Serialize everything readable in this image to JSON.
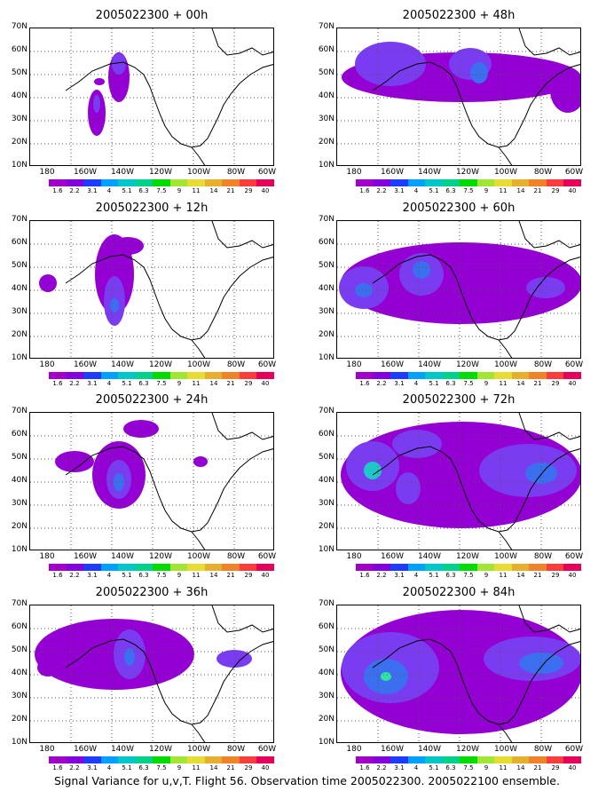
{
  "caption": "Signal Variance for u,v,T. Flight 56. Observation time 2005022300. 2005022100 ensemble.",
  "y_labels": [
    "70N",
    "60N",
    "50N",
    "40N",
    "30N",
    "20N",
    "10N"
  ],
  "x_labels": [
    "180",
    "160W",
    "140W",
    "120W",
    "100W",
    "80W",
    "60W"
  ],
  "colorbar": {
    "colors": [
      "#a000c8",
      "#8200dc",
      "#1e3cff",
      "#00a0ff",
      "#00c8c8",
      "#00d28c",
      "#00dc00",
      "#a0e632",
      "#e6dc32",
      "#e6af2d",
      "#f08228",
      "#fa3c3c",
      "#e6005a"
    ],
    "labels": [
      "1.6",
      "2.2",
      "3.1",
      "4",
      "5.1",
      "6.3",
      "7.5",
      "9",
      "11",
      "14",
      "21",
      "29",
      "40"
    ]
  },
  "panels": [
    {
      "title": "2005022300 + 00h"
    },
    {
      "title": "2005022300 + 48h"
    },
    {
      "title": "2005022300 + 12h"
    },
    {
      "title": "2005022300 + 60h"
    },
    {
      "title": "2005022300 + 24h"
    },
    {
      "title": "2005022300 + 72h"
    },
    {
      "title": "2005022300 + 36h"
    },
    {
      "title": "2005022300 + 84h"
    }
  ]
}
